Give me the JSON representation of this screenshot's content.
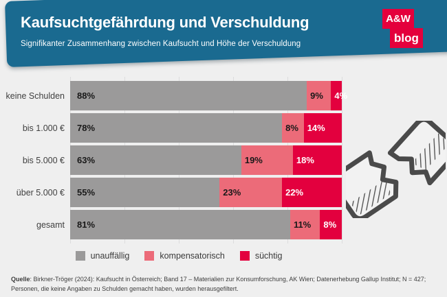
{
  "header": {
    "title": "Kaufsuchtgefährdung und Verschuldung",
    "subtitle": "Signifikanter Zusammenhang zwischen Kaufsucht und Höhe der Verschuldung",
    "logo": {
      "line1": "A&W",
      "line2": "blog"
    }
  },
  "chart_data": {
    "type": "bar",
    "orientation": "horizontal",
    "stacked": true,
    "title": "Kaufsuchtgefährdung und Verschuldung",
    "categories": [
      "keine Schulden",
      "bis 1.000 €",
      "bis 5.000 €",
      "über 5.000 €",
      "gesamt"
    ],
    "series": [
      {
        "name": "unauffällig",
        "color": "#9b9a9a",
        "label_color": "#191919",
        "label_pad": 10,
        "values": [
          88,
          78,
          63,
          55,
          81
        ]
      },
      {
        "name": "kompensatorisch",
        "color": "#ec6b79",
        "label_color": "#191919",
        "label_pad": 5,
        "values": [
          9,
          8,
          19,
          23,
          11
        ]
      },
      {
        "name": "süchtig",
        "color": "#e3003e",
        "label_color": "#ffffff",
        "label_pad": 5,
        "values": [
          4,
          14,
          18,
          22,
          8
        ]
      }
    ],
    "value_suffix": "%",
    "xlim": [
      0,
      100
    ],
    "gridlines_percent": [
      0,
      20,
      40,
      60,
      80,
      100
    ],
    "grid": true,
    "legend_position": "bottom"
  },
  "source": {
    "label": "Quelle",
    "line1": ": Birkner-Tröger (2024): Kaufsucht in Österreich; Band 17 – Materialien zur Konsumforschung, AK Wien; Datenerhebung Gallup Institut; N = 427;",
    "line2": "Personen, die keine Angaben zu Schulden gemacht haben, wurden herausgefiltert."
  },
  "icon": {
    "name": "broken-credit-card",
    "stroke": "#4a4a4a"
  },
  "colors": {
    "background": "#efefef",
    "banner": "#1a6a90",
    "brand_red": "#e4003c",
    "gridline": "#dcdcdd"
  }
}
